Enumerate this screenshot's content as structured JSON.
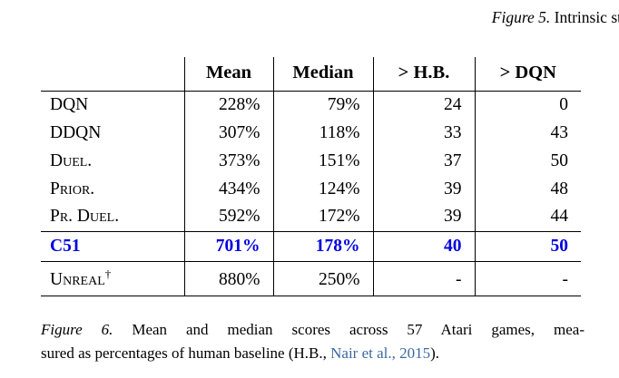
{
  "figure5": {
    "label": "Figure 5.",
    "text": " Intrinsic st"
  },
  "table": {
    "headers": [
      "Mean",
      "Median",
      "> H.B.",
      "> DQN"
    ],
    "rows": [
      {
        "label": "DQN",
        "values": [
          "228%",
          "79%",
          "24",
          "0"
        ]
      },
      {
        "label": "DDQN",
        "values": [
          "307%",
          "118%",
          "33",
          "43"
        ]
      },
      {
        "label": "Duel.",
        "values": [
          "373%",
          "151%",
          "37",
          "50"
        ]
      },
      {
        "label": "Prior.",
        "values": [
          "434%",
          "124%",
          "39",
          "48"
        ]
      },
      {
        "label": "Pr. Duel.",
        "values": [
          "592%",
          "172%",
          "39",
          "44"
        ]
      },
      {
        "label": "C51",
        "values": [
          "701%",
          "178%",
          "40",
          "50"
        ]
      }
    ],
    "unreal": {
      "label": "Unreal",
      "dagger": "†",
      "values": [
        "880%",
        "250%",
        "-",
        "-"
      ]
    }
  },
  "figure6": {
    "label": "Figure 6.",
    "line1_rest": " Mean and median scores across 57 Atari games, mea-",
    "line2_before": "sured as percentages of human baseline (H.B., ",
    "citation": "Nair et al., 2015",
    "line2_after": ")."
  },
  "colors": {
    "c51_highlight": "#0000e0",
    "citation_link": "#3b6aa0"
  }
}
